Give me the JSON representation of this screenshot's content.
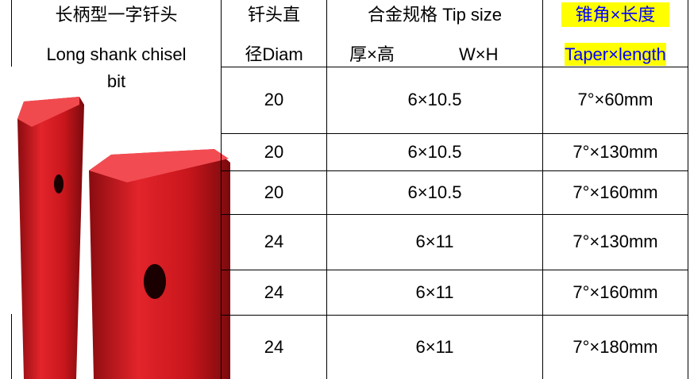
{
  "header": {
    "product": [
      "长柄型一字钎头",
      "Long shank chisel",
      "bit"
    ],
    "diameter": [
      "钎头直",
      "径Diam"
    ],
    "tip_size": [
      "合金规格 Tip size",
      "厚×高",
      "W×H"
    ],
    "taper": [
      "锥角×长度",
      "Taper×length"
    ]
  },
  "table": {
    "rows": [
      [
        "20",
        "6×10.5",
        "7°×60mm"
      ],
      [
        "20",
        "6×10.5",
        "7°×130mm"
      ],
      [
        "20",
        "6×10.5",
        "7°×160mm"
      ],
      [
        "24",
        "6×11",
        "7°×130mm"
      ],
      [
        "24",
        "6×11",
        "7°×160mm"
      ],
      [
        "24",
        "6×11",
        "7°×180mm"
      ]
    ]
  }
}
